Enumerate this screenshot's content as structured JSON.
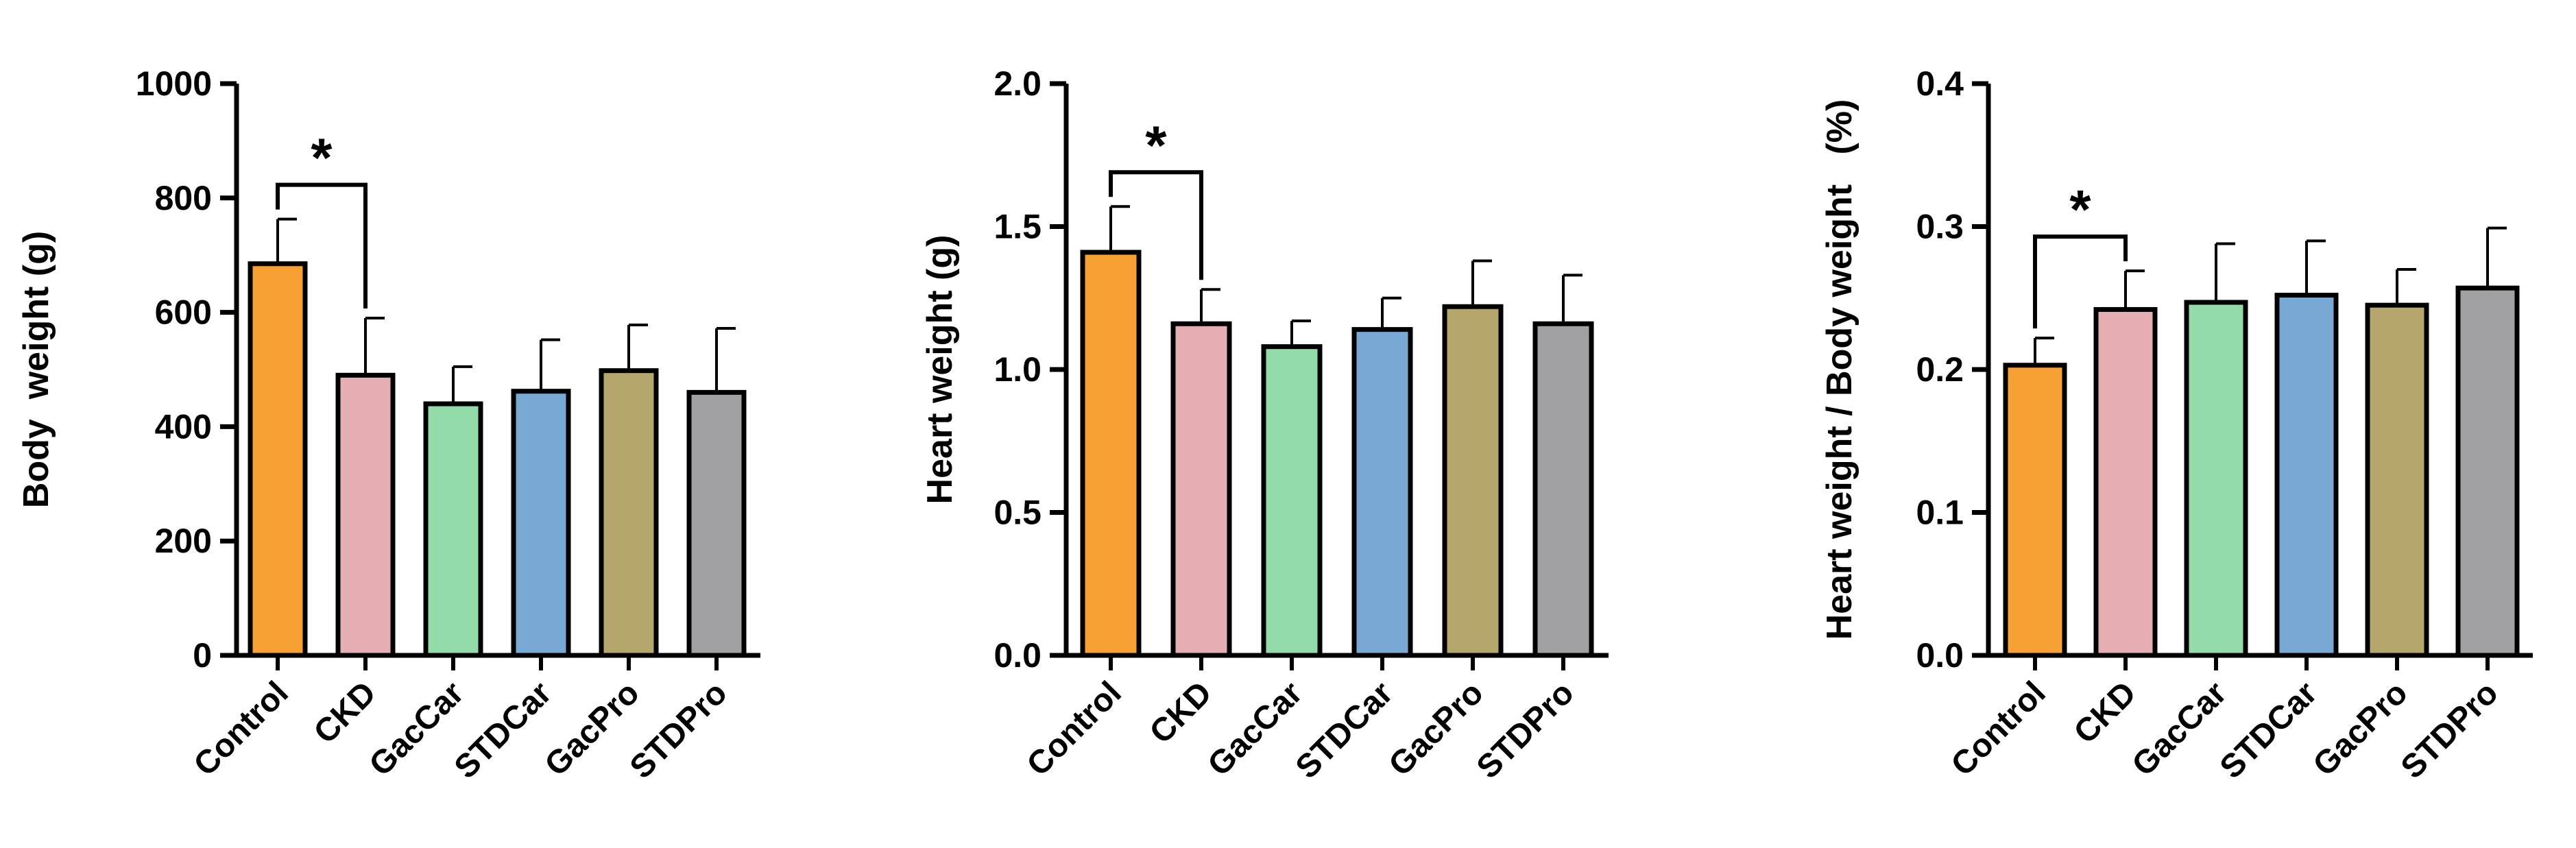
{
  "colors": {
    "Control": "#f7a033",
    "CKD": "#e4aeb2",
    "GacCar": "#93dca9",
    "STDCar": "#78a9d5",
    "GacPro": "#b4a66c",
    "STDPro": "#a0a0a3",
    "axis": "#000000"
  },
  "chart_data": [
    {
      "type": "bar",
      "title": "",
      "xlabel": "",
      "ylabel": "Body  weight (g)",
      "categories": [
        "Control",
        "CKD",
        "GacCar",
        "STDCar",
        "GacPro",
        "STDPro"
      ],
      "values": [
        685,
        490,
        440,
        462,
        498,
        460
      ],
      "errors": [
        78,
        100,
        65,
        90,
        80,
        112
      ],
      "ylim": [
        0,
        1000
      ],
      "yticks": [
        "0",
        "200",
        "400",
        "600",
        "800",
        "1000"
      ],
      "significance": {
        "from": "Control",
        "to": "CKD",
        "label": "*"
      },
      "grid": false,
      "legend": "none"
    },
    {
      "type": "bar",
      "title": "",
      "xlabel": "",
      "ylabel": "Heart weight (g)",
      "categories": [
        "Control",
        "CKD",
        "GacCar",
        "STDCar",
        "GacPro",
        "STDPro"
      ],
      "values": [
        1.41,
        1.16,
        1.08,
        1.14,
        1.22,
        1.16
      ],
      "errors": [
        0.16,
        0.12,
        0.09,
        0.11,
        0.16,
        0.17
      ],
      "ylim": [
        0,
        2.0
      ],
      "yticks": [
        "0.0",
        "0.5",
        "1.0",
        "1.5",
        "2.0"
      ],
      "significance": {
        "from": "Control",
        "to": "CKD",
        "label": "*"
      },
      "grid": false,
      "legend": "none"
    },
    {
      "type": "bar",
      "title": "",
      "xlabel": "",
      "ylabel": "Heart weight / Body weight   (%)",
      "categories": [
        "Control",
        "CKD",
        "GacCar",
        "STDCar",
        "GacPro",
        "STDPro"
      ],
      "values": [
        0.203,
        0.242,
        0.247,
        0.252,
        0.245,
        0.257
      ],
      "errors": [
        0.019,
        0.027,
        0.041,
        0.038,
        0.025,
        0.042
      ],
      "ylim": [
        0,
        0.4
      ],
      "yticks": [
        "0.0",
        "0.1",
        "0.2",
        "0.3",
        "0.4"
      ],
      "significance": {
        "from": "Control",
        "to": "CKD",
        "label": "*"
      },
      "grid": false,
      "legend": "none"
    }
  ]
}
